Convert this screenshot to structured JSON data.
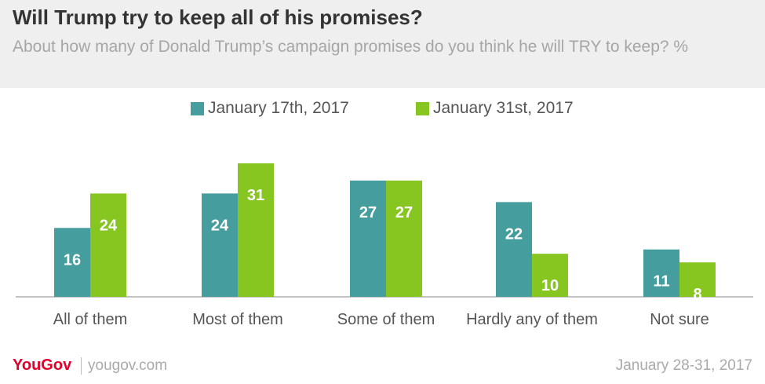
{
  "header": {
    "title": "Will Trump try to keep all of his promises?",
    "subtitle": "About how many of Donald Trump’s campaign promises do you think he will TRY to keep? %"
  },
  "colors": {
    "series1": "#459d9e",
    "series2": "#87c620",
    "label": "#ffffff"
  },
  "chart_data": {
    "type": "bar",
    "title": "Will Trump try to keep all of his promises?",
    "subtitle": "About how many of Donald Trump’s campaign promises do you think he will TRY to keep? %",
    "categories": [
      "All of them",
      "Most of them",
      "Some of them",
      "Hardly any of them",
      "Not sure"
    ],
    "series": [
      {
        "name": "January 17th, 2017",
        "values": [
          16,
          24,
          27,
          22,
          11
        ]
      },
      {
        "name": "January 31st, 2017",
        "values": [
          24,
          31,
          27,
          10,
          8
        ]
      }
    ],
    "ylim": [
      0,
      31
    ],
    "legend": "top",
    "grid": false
  },
  "footer": {
    "brand": "YouGov",
    "url": "yougov.com",
    "date": "January 28-31, 2017"
  }
}
